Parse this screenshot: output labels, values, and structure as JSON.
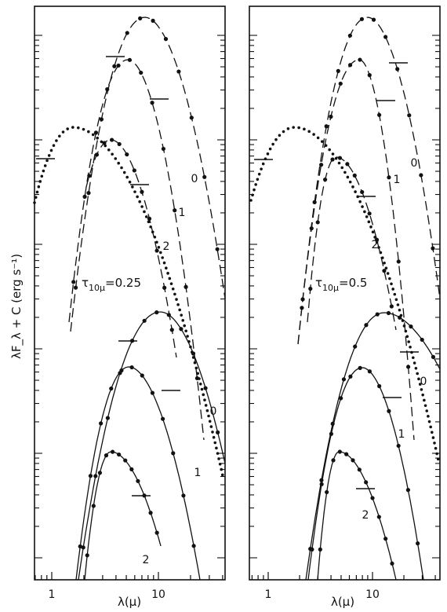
{
  "figure": {
    "ylabel": "λF_λ + C (erg s⁻¹)",
    "xlabel": "λ(μ)",
    "xticks": [
      "1",
      "10"
    ],
    "xrange_microns": [
      0.7,
      40
    ],
    "xscale": "log",
    "yscale": "log",
    "colors": {
      "ink": "#111111",
      "paper": "#ffffff"
    }
  },
  "chart_data": [
    {
      "type": "line",
      "panel": "left",
      "annotation": "τ10μ=0.25",
      "tau_label": {
        "sym": "τ",
        "sub": "10μ",
        "value": "=0.25"
      },
      "xlabel": "λ(μ)",
      "ylabel": "λF_λ + C (erg s⁻¹)",
      "xlim": [
        0.7,
        40
      ],
      "series": [
        {
          "label": "0",
          "group": "upper",
          "style": "dashed",
          "peak_x": 7.5
        },
        {
          "label": "1",
          "group": "upper",
          "style": "dashed",
          "peak_x": 5.2
        },
        {
          "label": "2",
          "group": "upper",
          "style": "dashed",
          "peak_x": 3.6
        },
        {
          "style": "dotted",
          "peak_x": 1.6
        },
        {
          "label": "0",
          "group": "lower",
          "style": "solid",
          "peak_x": 10.5
        },
        {
          "label": "1",
          "group": "lower",
          "style": "solid",
          "peak_x": 5.3
        },
        {
          "label": "2",
          "group": "lower",
          "style": "solid",
          "peak_x": 3.6
        }
      ],
      "horizontal_bars_x": [
        0.9,
        4.8,
        9.8,
        7.2,
        5.1,
        13.5,
        8.5
      ]
    },
    {
      "type": "line",
      "panel": "right",
      "annotation": "τ10μ=0.5",
      "tau_label": {
        "sym": "τ",
        "sub": "10μ",
        "value": "=0.5"
      },
      "xlabel": "λ(μ)",
      "xlim": [
        0.7,
        40
      ],
      "series": [
        {
          "label": "0",
          "group": "upper",
          "style": "dashed",
          "peak_x": 9.0
        },
        {
          "label": "1",
          "group": "upper",
          "style": "dashed",
          "peak_x": 7.5
        },
        {
          "label": "2",
          "group": "upper",
          "style": "dashed",
          "peak_x": 4.5
        },
        {
          "style": "dotted",
          "peak_x": 1.8
        },
        {
          "label": "0",
          "group": "lower",
          "style": "solid",
          "peak_x": 13
        },
        {
          "label": "1",
          "group": "lower",
          "style": "solid",
          "peak_x": 8.0
        },
        {
          "label": "2",
          "group": "lower",
          "style": "solid",
          "peak_x": 4.8
        }
      ],
      "horizontal_bars_x": [
        0.9,
        21,
        15,
        10.5,
        24,
        17,
        11
      ]
    }
  ]
}
